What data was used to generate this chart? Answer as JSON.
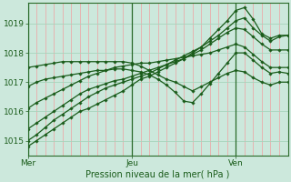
{
  "bg_color": "#cce8dc",
  "grid_vline_color": "#f0a0a0",
  "grid_hline_color": "#a8d4bc",
  "line_color": "#1a5c1a",
  "axis_color": "#2a6b2a",
  "text_color": "#1a5c1a",
  "xlabel": "Pression niveau de la mer( hPa )",
  "xtick_labels": [
    "Mer",
    "Jeu",
    "Ven"
  ],
  "xtick_positions": [
    0,
    12,
    24
  ],
  "ytick_positions": [
    1015,
    1016,
    1017,
    1018,
    1019
  ],
  "ylim": [
    1014.5,
    1019.7
  ],
  "xlim": [
    0,
    30
  ],
  "vline_positions": [
    0,
    12,
    24
  ],
  "n_vgrid": 30,
  "series": [
    [
      1014.8,
      1015.0,
      1015.2,
      1015.4,
      1015.6,
      1015.8,
      1016.0,
      1016.1,
      1016.25,
      1016.4,
      1016.55,
      1016.7,
      1016.9,
      1017.1,
      1017.2,
      1017.35,
      1017.5,
      1017.65,
      1017.8,
      1018.0,
      1018.2,
      1018.5,
      1018.8,
      1019.1,
      1019.45,
      1019.55,
      1019.15,
      1018.65,
      1018.5,
      1018.6,
      1018.6
    ],
    [
      1015.0,
      1015.2,
      1015.45,
      1015.7,
      1015.9,
      1016.1,
      1016.3,
      1016.5,
      1016.65,
      1016.8,
      1016.9,
      1017.0,
      1017.1,
      1017.2,
      1017.3,
      1017.45,
      1017.6,
      1017.75,
      1017.9,
      1018.05,
      1018.2,
      1018.4,
      1018.6,
      1018.85,
      1019.1,
      1019.2,
      1018.85,
      1018.6,
      1018.4,
      1018.55,
      1018.6
    ],
    [
      1015.4,
      1015.6,
      1015.8,
      1016.0,
      1016.2,
      1016.4,
      1016.6,
      1016.75,
      1016.85,
      1016.95,
      1017.05,
      1017.1,
      1017.2,
      1017.3,
      1017.4,
      1017.5,
      1017.6,
      1017.7,
      1017.8,
      1017.95,
      1018.1,
      1018.3,
      1018.5,
      1018.7,
      1018.85,
      1018.8,
      1018.55,
      1018.3,
      1018.1,
      1018.1,
      1018.1
    ],
    [
      1016.1,
      1016.3,
      1016.45,
      1016.6,
      1016.75,
      1016.9,
      1017.05,
      1017.2,
      1017.3,
      1017.4,
      1017.5,
      1017.55,
      1017.6,
      1017.65,
      1017.65,
      1017.7,
      1017.75,
      1017.8,
      1017.85,
      1017.9,
      1017.95,
      1018.0,
      1018.1,
      1018.2,
      1018.3,
      1018.2,
      1017.95,
      1017.7,
      1017.5,
      1017.5,
      1017.5
    ],
    [
      1016.85,
      1017.0,
      1017.1,
      1017.15,
      1017.2,
      1017.25,
      1017.3,
      1017.35,
      1017.4,
      1017.4,
      1017.45,
      1017.45,
      1017.4,
      1017.35,
      1017.25,
      1017.1,
      1016.9,
      1016.65,
      1016.35,
      1016.3,
      1016.6,
      1016.95,
      1017.3,
      1017.65,
      1018.0,
      1018.0,
      1017.75,
      1017.5,
      1017.3,
      1017.35,
      1017.3
    ],
    [
      1017.5,
      1017.55,
      1017.6,
      1017.65,
      1017.7,
      1017.7,
      1017.7,
      1017.7,
      1017.7,
      1017.7,
      1017.7,
      1017.7,
      1017.65,
      1017.55,
      1017.4,
      1017.25,
      1017.1,
      1017.0,
      1016.85,
      1016.7,
      1016.85,
      1017.0,
      1017.15,
      1017.3,
      1017.4,
      1017.35,
      1017.15,
      1017.0,
      1016.9,
      1017.0,
      1017.0
    ]
  ]
}
